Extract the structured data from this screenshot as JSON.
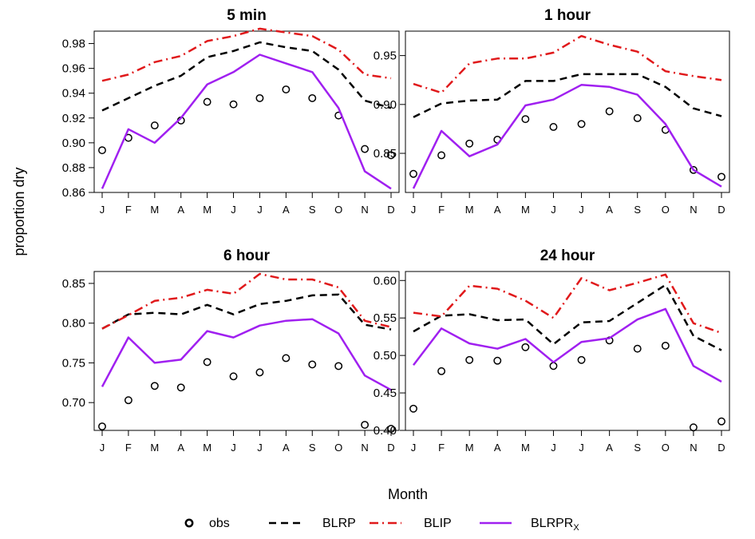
{
  "figure": {
    "ylabel": "proportion dry",
    "xlabel": "Month"
  },
  "legend": {
    "items": [
      {
        "key": "obs",
        "label": "obs",
        "style": "points"
      },
      {
        "key": "blrp",
        "label": "BLRP",
        "style": "dashed",
        "color": "#000000"
      },
      {
        "key": "blip",
        "label": "BLIP",
        "style": "dashdot",
        "color": "#e0191b"
      },
      {
        "key": "blrprx",
        "label": "BLRPR",
        "label_sub": "X",
        "style": "solid",
        "color": "#a020f0"
      }
    ]
  },
  "chart_data": [
    {
      "type": "line",
      "title": "5 min",
      "categories": [
        "J",
        "F",
        "M",
        "A",
        "M",
        "J",
        "J",
        "A",
        "S",
        "O",
        "N",
        "D"
      ],
      "ylim": [
        0.86,
        0.99
      ],
      "yticks": [
        0.86,
        0.88,
        0.9,
        0.92,
        0.94,
        0.96,
        0.98
      ],
      "ytick_labels": [
        "0.86",
        "0.88",
        "0.90",
        "0.92",
        "0.94",
        "0.96",
        "0.98"
      ],
      "series": [
        {
          "name": "obs",
          "values": [
            0.894,
            0.904,
            0.914,
            0.918,
            0.933,
            0.931,
            0.936,
            0.943,
            0.936,
            0.922,
            0.895,
            0.89
          ]
        },
        {
          "name": "BLRP",
          "values": [
            0.926,
            0.936,
            0.946,
            0.954,
            0.969,
            0.974,
            0.981,
            0.977,
            0.974,
            0.959,
            0.934,
            0.928
          ]
        },
        {
          "name": "BLIP",
          "values": [
            0.95,
            0.955,
            0.965,
            0.97,
            0.982,
            0.986,
            0.992,
            0.989,
            0.986,
            0.975,
            0.955,
            0.952
          ]
        },
        {
          "name": "BLRPRX",
          "values": [
            0.863,
            0.911,
            0.9,
            0.92,
            0.947,
            0.957,
            0.971,
            0.964,
            0.957,
            0.928,
            0.877,
            0.863
          ]
        }
      ]
    },
    {
      "type": "line",
      "title": "1 hour",
      "categories": [
        "J",
        "F",
        "M",
        "A",
        "M",
        "J",
        "J",
        "A",
        "S",
        "O",
        "N",
        "D"
      ],
      "ylim": [
        0.81,
        0.975
      ],
      "yticks": [
        0.85,
        0.9,
        0.95
      ],
      "ytick_labels": [
        "0.85",
        "0.90",
        "0.95"
      ],
      "series": [
        {
          "name": "obs",
          "values": [
            0.829,
            0.848,
            0.86,
            0.864,
            0.885,
            0.877,
            0.88,
            0.893,
            0.886,
            0.874,
            0.833,
            0.826
          ]
        },
        {
          "name": "BLRP",
          "values": [
            0.887,
            0.901,
            0.904,
            0.905,
            0.924,
            0.924,
            0.931,
            0.931,
            0.931,
            0.918,
            0.896,
            0.888
          ]
        },
        {
          "name": "BLIP",
          "values": [
            0.921,
            0.912,
            0.942,
            0.947,
            0.947,
            0.953,
            0.97,
            0.961,
            0.954,
            0.934,
            0.929,
            0.925
          ]
        },
        {
          "name": "BLRPRX",
          "values": [
            0.814,
            0.873,
            0.847,
            0.859,
            0.899,
            0.905,
            0.92,
            0.918,
            0.91,
            0.88,
            0.833,
            0.816
          ]
        }
      ]
    },
    {
      "type": "line",
      "title": "6 hour",
      "categories": [
        "J",
        "F",
        "M",
        "A",
        "M",
        "J",
        "J",
        "A",
        "S",
        "O",
        "N",
        "D"
      ],
      "ylim": [
        0.665,
        0.865
      ],
      "yticks": [
        0.7,
        0.75,
        0.8,
        0.85
      ],
      "ytick_labels": [
        "0.70",
        "0.75",
        "0.80",
        "0.85"
      ],
      "series": [
        {
          "name": "obs",
          "values": [
            0.67,
            0.703,
            0.721,
            0.719,
            0.751,
            0.733,
            0.738,
            0.756,
            0.748,
            0.746,
            0.672,
            0.667
          ]
        },
        {
          "name": "BLRP",
          "values": [
            0.793,
            0.811,
            0.813,
            0.811,
            0.823,
            0.811,
            0.824,
            0.828,
            0.835,
            0.836,
            0.798,
            0.792
          ]
        },
        {
          "name": "BLIP",
          "values": [
            0.793,
            0.81,
            0.828,
            0.832,
            0.842,
            0.837,
            0.862,
            0.855,
            0.855,
            0.845,
            0.803,
            0.795
          ]
        },
        {
          "name": "BLRPRX",
          "values": [
            0.72,
            0.782,
            0.75,
            0.754,
            0.79,
            0.782,
            0.797,
            0.803,
            0.805,
            0.787,
            0.734,
            0.716
          ]
        }
      ]
    },
    {
      "type": "line",
      "title": "24 hour",
      "categories": [
        "J",
        "F",
        "M",
        "A",
        "M",
        "J",
        "J",
        "A",
        "S",
        "O",
        "N",
        "D"
      ],
      "ylim": [
        0.4,
        0.612
      ],
      "yticks": [
        0.4,
        0.45,
        0.5,
        0.55,
        0.6
      ],
      "ytick_labels": [
        "0.40",
        "0.45",
        "0.50",
        "0.55",
        "0.60"
      ],
      "series": [
        {
          "name": "obs",
          "values": [
            0.429,
            0.479,
            0.494,
            0.493,
            0.511,
            0.486,
            0.494,
            0.52,
            0.509,
            0.513,
            0.404,
            0.412
          ]
        },
        {
          "name": "BLRP",
          "values": [
            0.532,
            0.553,
            0.555,
            0.547,
            0.548,
            0.515,
            0.544,
            0.546,
            0.57,
            0.594,
            0.526,
            0.507
          ]
        },
        {
          "name": "BLIP",
          "values": [
            0.557,
            0.552,
            0.593,
            0.589,
            0.573,
            0.55,
            0.603,
            0.587,
            0.597,
            0.608,
            0.543,
            0.53
          ]
        },
        {
          "name": "BLRPRX",
          "values": [
            0.487,
            0.536,
            0.516,
            0.509,
            0.522,
            0.491,
            0.518,
            0.523,
            0.548,
            0.562,
            0.486,
            0.465
          ]
        }
      ]
    }
  ]
}
